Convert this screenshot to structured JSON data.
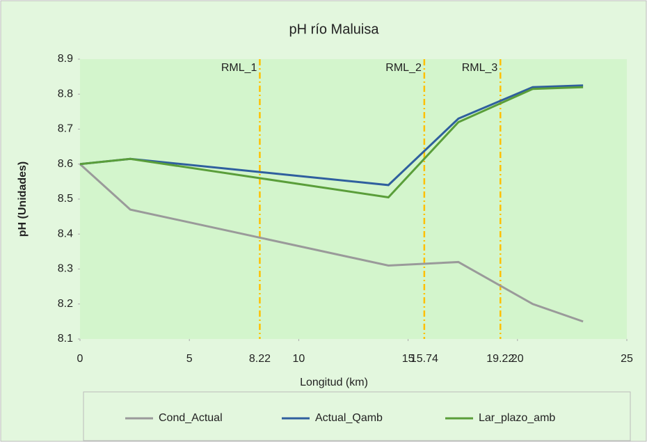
{
  "chart_data": {
    "type": "line",
    "title": "pH río Maluisa",
    "xlabel": "Longitud (km)",
    "ylabel": "pH (Unidades)",
    "x": [
      0,
      2.3,
      14.1,
      17.3,
      20.7,
      23.0
    ],
    "series": [
      {
        "name": "Cond_Actual",
        "color": "#9a9a9a",
        "values": [
          8.6,
          8.47,
          8.31,
          8.32,
          8.2,
          8.15
        ]
      },
      {
        "name": "Actual_Qamb",
        "color": "#2f5f9e",
        "values": [
          8.6,
          8.615,
          8.54,
          8.73,
          8.82,
          8.825
        ]
      },
      {
        "name": "Lar_plazo_amb",
        "color": "#5a9e3a",
        "values": [
          8.6,
          8.615,
          8.505,
          8.72,
          8.815,
          8.82
        ]
      }
    ],
    "vlines": [
      {
        "x": 8.22,
        "label": "RML_1"
      },
      {
        "x": 15.74,
        "label": "RML_2"
      },
      {
        "x": 19.22,
        "label": "RML_3"
      }
    ],
    "vline_color": "#ffc000",
    "xlim": [
      0,
      25
    ],
    "xticks": [
      0,
      5,
      10,
      15,
      20,
      25
    ],
    "ylim": [
      8.1,
      8.9
    ],
    "yticks": [
      8.1,
      8.2,
      8.3,
      8.4,
      8.5,
      8.6,
      8.7,
      8.8,
      8.9
    ],
    "plot_background": "#d3f5cc"
  }
}
